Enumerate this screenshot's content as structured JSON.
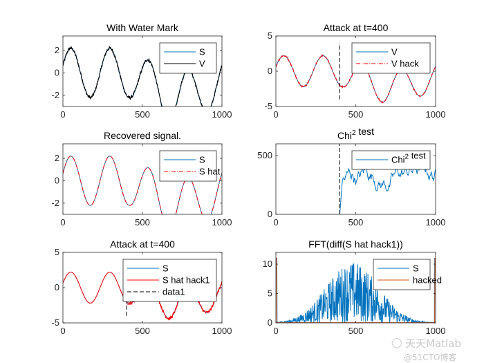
{
  "chart_data": [
    {
      "type": "line",
      "title": "With Water Mark",
      "xlim": [
        0,
        1000
      ],
      "ylim": [
        -3,
        3.3
      ],
      "xticks": [
        0,
        500,
        1000
      ],
      "yticks": [
        -2,
        0,
        2
      ],
      "series": [
        {
          "name": "S",
          "color": "#0072BD"
        },
        {
          "name": "V",
          "color": "#000000"
        }
      ],
      "legend": "top-right"
    },
    {
      "type": "line",
      "title": "Attack at t=400",
      "xlim": [
        0,
        1000
      ],
      "ylim": [
        -5,
        5
      ],
      "xticks": [
        0,
        500,
        1000
      ],
      "yticks": [
        -5,
        0,
        5
      ],
      "series": [
        {
          "name": "V",
          "color": "#0072BD"
        },
        {
          "name": "V hack",
          "color": "#FF0000",
          "dash": "dash-dot"
        }
      ],
      "vline": {
        "x": 400,
        "y": [
          -4,
          4
        ],
        "color": "#000000"
      },
      "legend": "top-right"
    },
    {
      "type": "line",
      "title": "Recovered signal.",
      "xlim": [
        0,
        1000
      ],
      "ylim": [
        -3,
        3.3
      ],
      "xticks": [
        0,
        500,
        1000
      ],
      "yticks": [
        -2,
        0,
        2
      ],
      "series": [
        {
          "name": "S",
          "color": "#0072BD"
        },
        {
          "name": "S hat",
          "color": "#FF0000",
          "dash": "dash-dot"
        }
      ],
      "legend": "top-right"
    },
    {
      "type": "line",
      "title": "Chi² test",
      "xlim": [
        0,
        1000
      ],
      "ylim": [
        0,
        600
      ],
      "xticks": [
        0,
        500,
        1000
      ],
      "yticks": [
        0,
        500
      ],
      "series": [
        {
          "name": "Chi² test",
          "color": "#0072BD"
        }
      ],
      "vline": {
        "x": 400,
        "y": [
          0,
          600
        ],
        "color": "#000000"
      },
      "legend": "top-right"
    },
    {
      "type": "line",
      "title": "Attack at t=400",
      "xlim": [
        0,
        1000
      ],
      "ylim": [
        -5,
        5
      ],
      "xticks": [
        0,
        500,
        1000
      ],
      "yticks": [
        -5,
        0,
        5
      ],
      "series": [
        {
          "name": "S",
          "color": "#0072BD"
        },
        {
          "name": "S hat hack1",
          "color": "#FF0000"
        },
        {
          "name": "data1",
          "color": "#000000",
          "dash": "dash"
        }
      ],
      "vline": {
        "x": 400,
        "y": [
          -4,
          0
        ],
        "color": "#000000"
      },
      "legend": "top-right"
    },
    {
      "type": "line",
      "title": "FFT(diff(S hat hack1))",
      "xlim": [
        0,
        1000
      ],
      "ylim": [
        0,
        12
      ],
      "xticks": [
        0,
        500,
        1000
      ],
      "yticks": [
        0,
        5,
        10
      ],
      "series": [
        {
          "name": "S",
          "color": "#0072BD"
        },
        {
          "name": "hacked",
          "color": "#D95319"
        }
      ],
      "legend": "top-right"
    }
  ],
  "watermark": {
    "line1": "天天Matlab",
    "line2": "@51CTO博客"
  }
}
